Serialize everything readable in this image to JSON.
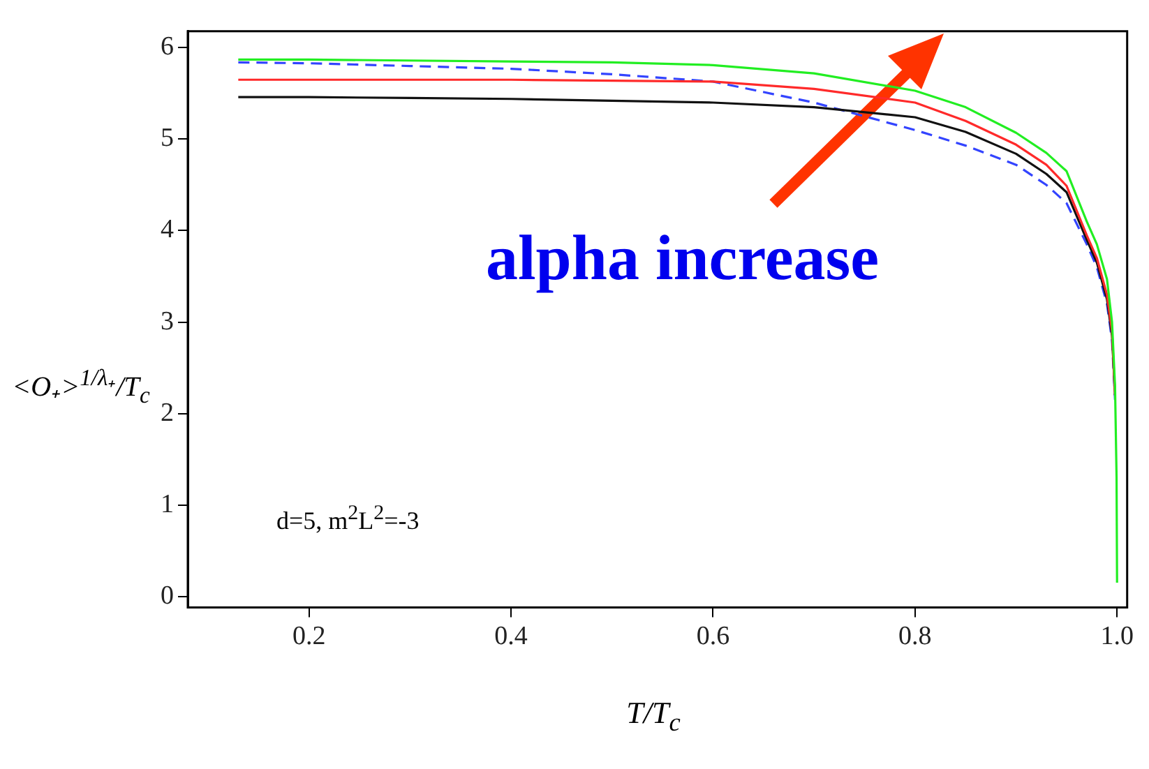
{
  "chart_data": {
    "type": "line",
    "xlabel": "T/T$_{c}$",
    "ylabel": "<O₊>$^{1/λ₊}$/T$_{c}$",
    "xlim": [
      0.08,
      1.01
    ],
    "ylim": [
      -0.12,
      6.18
    ],
    "xticks": [
      0.2,
      0.4,
      0.6,
      0.8,
      {
        "value": 1.0,
        "label": "1.0"
      }
    ],
    "yticks": [
      0,
      1,
      2,
      3,
      4,
      5,
      6
    ],
    "marker": "none",
    "annotations": [
      "alpha increase",
      "d=5, m$^{2}$L$^{2}$=-3"
    ],
    "x": [
      0.13,
      0.2,
      0.3,
      0.4,
      0.5,
      0.6,
      0.7,
      0.8,
      0.85,
      0.9,
      0.93,
      0.95,
      0.97,
      0.98,
      0.99,
      0.995,
      0.998,
      0.9995,
      1.0
    ],
    "series": [
      {
        "color": "#22ee22",
        "values": [
          5.87,
          5.87,
          5.86,
          5.85,
          5.84,
          5.81,
          5.72,
          5.53,
          5.35,
          5.07,
          4.85,
          4.65,
          4.1,
          3.85,
          3.47,
          3.0,
          2.3,
          1.3,
          0.15
        ]
      },
      {
        "color": "#ff2a2a",
        "values": [
          5.65,
          5.65,
          5.65,
          5.65,
          5.64,
          5.63,
          5.55,
          5.4,
          5.2,
          4.94,
          4.72,
          4.49,
          3.95,
          3.7,
          3.3,
          2.9,
          2.2,
          null,
          null
        ]
      },
      {
        "color": "#111111",
        "values": [
          5.46,
          5.46,
          5.45,
          5.44,
          5.42,
          5.4,
          5.35,
          5.24,
          5.08,
          4.84,
          4.62,
          4.42,
          3.9,
          3.65,
          3.25,
          2.85,
          2.2,
          null,
          null
        ]
      },
      {
        "color": "#3344ff",
        "line_style": "dashed",
        "values": [
          5.84,
          5.83,
          5.8,
          5.77,
          5.71,
          5.63,
          5.4,
          5.1,
          4.93,
          4.72,
          4.5,
          4.3,
          3.85,
          3.6,
          3.2,
          2.8,
          2.15,
          null,
          null
        ]
      }
    ]
  }
}
